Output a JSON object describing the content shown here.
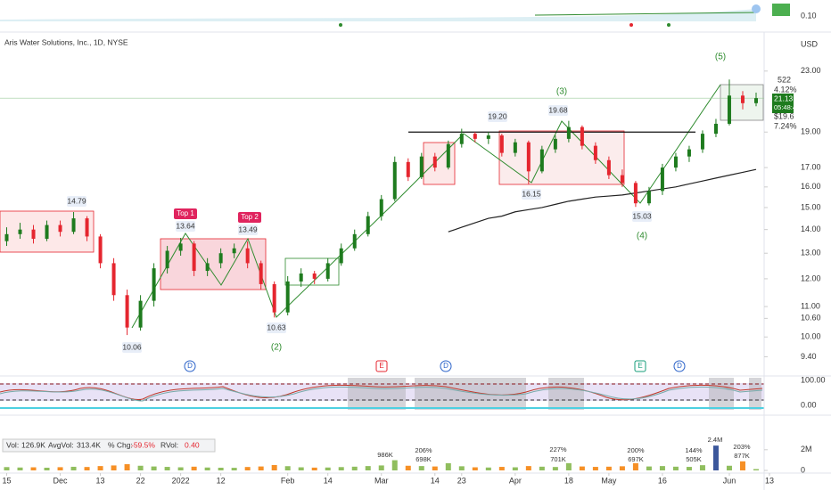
{
  "chart_data": {
    "type": "candlestick",
    "title": "Aris Water Solutions, Inc., 1D, NYSE",
    "log_scale": true,
    "ylim": [
      8.9,
      25.7
    ],
    "yticks": [
      {
        "value": 23,
        "label": "23.00"
      },
      {
        "value": 19,
        "label": "19.00"
      },
      {
        "value": 17,
        "label": "17.00"
      },
      {
        "value": 16,
        "label": "16.00"
      },
      {
        "value": 15,
        "label": "15.00"
      },
      {
        "value": 14,
        "label": "14.00"
      },
      {
        "value": 13,
        "label": "13.00"
      },
      {
        "value": 12,
        "label": "12.00"
      },
      {
        "value": 11,
        "label": "11.00"
      },
      {
        "value": 10.6,
        "label": "10.60"
      },
      {
        "value": 10,
        "label": "10.00"
      },
      {
        "value": 9.4,
        "label": "9.40"
      }
    ],
    "xlim": [
      -0.5,
      56.6
    ],
    "xticks": [
      {
        "value": 0,
        "label": "15"
      },
      {
        "value": 4,
        "label": "Dec"
      },
      {
        "value": 7,
        "label": "13"
      },
      {
        "value": 10,
        "label": "22"
      },
      {
        "value": 13,
        "label": "2022"
      },
      {
        "value": 16,
        "label": "12"
      },
      {
        "value": 21,
        "label": "Feb"
      },
      {
        "value": 24,
        "label": "14"
      },
      {
        "value": 28,
        "label": "Mar"
      },
      {
        "value": 32,
        "label": "14"
      },
      {
        "value": 34,
        "label": "23"
      },
      {
        "value": 38,
        "label": "Apr"
      },
      {
        "value": 42,
        "label": "18"
      },
      {
        "value": 45,
        "label": "May"
      },
      {
        "value": 49,
        "label": "16"
      },
      {
        "value": 54,
        "label": "Jun"
      },
      {
        "value": 57,
        "label": "13"
      }
    ],
    "up_color": "#1e7b1e",
    "down_color": "#e5262f",
    "candles": [
      [
        13.5,
        14.1,
        13.3,
        13.8
      ],
      [
        13.8,
        14.3,
        13.6,
        14.0
      ],
      [
        14.0,
        14.2,
        13.4,
        13.6
      ],
      [
        13.6,
        14.4,
        13.5,
        14.2
      ],
      [
        14.2,
        14.4,
        13.7,
        13.9
      ],
      [
        13.9,
        14.79,
        13.8,
        14.5
      ],
      [
        14.5,
        14.6,
        13.5,
        13.7
      ],
      [
        13.7,
        13.8,
        12.4,
        12.6
      ],
      [
        12.6,
        12.8,
        11.2,
        11.4
      ],
      [
        11.4,
        11.6,
        10.06,
        10.3
      ],
      [
        10.3,
        11.4,
        10.2,
        11.2
      ],
      [
        11.2,
        12.6,
        11.0,
        12.4
      ],
      [
        12.4,
        13.3,
        12.2,
        13.1
      ],
      [
        13.1,
        13.64,
        12.9,
        13.4
      ],
      [
        13.4,
        13.5,
        12.1,
        12.3
      ],
      [
        12.3,
        12.8,
        12.1,
        12.6
      ],
      [
        12.6,
        13.2,
        12.4,
        13.0
      ],
      [
        13.0,
        13.4,
        12.8,
        13.2
      ],
      [
        13.2,
        13.49,
        12.4,
        12.6
      ],
      [
        12.6,
        12.7,
        11.6,
        11.8
      ],
      [
        11.8,
        11.9,
        10.63,
        10.8
      ],
      [
        10.8,
        12.1,
        10.7,
        11.9
      ],
      [
        11.9,
        12.4,
        11.7,
        12.2
      ],
      [
        12.2,
        12.3,
        11.8,
        12.0
      ],
      [
        12.0,
        12.8,
        11.9,
        12.6
      ],
      [
        12.6,
        13.4,
        12.5,
        13.2
      ],
      [
        13.2,
        14.0,
        13.1,
        13.8
      ],
      [
        13.8,
        14.8,
        13.7,
        14.6
      ],
      [
        14.6,
        15.6,
        14.4,
        15.4
      ],
      [
        15.4,
        17.6,
        15.3,
        17.3
      ],
      [
        17.3,
        17.5,
        16.3,
        16.5
      ],
      [
        16.5,
        17.8,
        16.4,
        17.6
      ],
      [
        17.6,
        17.8,
        16.8,
        17.0
      ],
      [
        17.0,
        18.5,
        16.9,
        18.3
      ],
      [
        18.3,
        19.2,
        18.1,
        18.9
      ],
      [
        18.9,
        19.0,
        18.4,
        18.6
      ],
      [
        18.6,
        19.0,
        18.3,
        18.8
      ],
      [
        18.8,
        18.9,
        17.6,
        17.8
      ],
      [
        17.8,
        18.6,
        17.6,
        18.4
      ],
      [
        18.4,
        18.5,
        16.15,
        16.8
      ],
      [
        16.8,
        18.2,
        16.7,
        18.0
      ],
      [
        18.0,
        18.8,
        17.8,
        18.6
      ],
      [
        18.6,
        19.68,
        18.4,
        19.3
      ],
      [
        19.3,
        19.4,
        18.0,
        18.2
      ],
      [
        18.2,
        18.4,
        17.2,
        17.4
      ],
      [
        17.4,
        17.6,
        16.4,
        16.6
      ],
      [
        16.6,
        16.9,
        16.0,
        16.2
      ],
      [
        16.2,
        16.3,
        15.03,
        15.2
      ],
      [
        15.2,
        16.0,
        15.1,
        15.8
      ],
      [
        15.8,
        17.2,
        15.6,
        17.0
      ],
      [
        17.0,
        17.8,
        16.8,
        17.6
      ],
      [
        17.6,
        18.2,
        17.3,
        18.0
      ],
      [
        18.0,
        19.1,
        17.8,
        18.9
      ],
      [
        18.9,
        19.8,
        18.7,
        19.5
      ],
      [
        19.5,
        22.4,
        19.4,
        21.3
      ],
      [
        21.3,
        21.6,
        20.4,
        20.8
      ],
      [
        20.8,
        21.5,
        20.6,
        21.13
      ]
    ],
    "moving_average": {
      "color": "#222222",
      "values": [
        null,
        null,
        null,
        null,
        null,
        null,
        null,
        null,
        null,
        null,
        null,
        null,
        null,
        null,
        null,
        null,
        null,
        null,
        null,
        null,
        null,
        null,
        null,
        null,
        null,
        null,
        null,
        null,
        null,
        null,
        null,
        null,
        null,
        13.9,
        14.1,
        14.3,
        14.5,
        14.6,
        14.8,
        14.9,
        15.0,
        15.15,
        15.3,
        15.4,
        15.5,
        15.55,
        15.6,
        15.7,
        15.8,
        15.9,
        16.0,
        16.15,
        16.3,
        16.45,
        16.6,
        16.75,
        16.9
      ]
    },
    "resistance_level": 19.0,
    "price_labels": [
      "14.79",
      "13.64",
      "13.49",
      "10.06",
      "10.63",
      "19.20",
      "19.68",
      "16.15",
      "15.03"
    ],
    "wave_labels": [
      "(2)",
      "(3)",
      "(4)",
      "(5)"
    ],
    "pattern_labels": [
      "Top 1",
      "Top 2"
    ],
    "event_labels": [
      "D",
      "E",
      "D",
      "E",
      "D"
    ],
    "right_labels": {
      "currency": "USD",
      "target": "522",
      "target_pct": "4.12%",
      "stop": "$19.6",
      "stop_pct": "7.24%",
      "last": "21.13",
      "countdown": "05:48:41",
      "top_pane_tick": "0.10"
    },
    "osc_ticks": [
      "100.00",
      "0.00"
    ],
    "volume": [
      320000,
      280000,
      300000,
      260000,
      310000,
      350000,
      330000,
      420000,
      480000,
      600000,
      450000,
      380000,
      340000,
      300000,
      360000,
      280000,
      260000,
      250000,
      330000,
      380000,
      520000,
      410000,
      300000,
      270000,
      280000,
      320000,
      360000,
      420000,
      480000,
      986000,
      450000,
      420000,
      380000,
      698000,
      400000,
      300000,
      280000,
      340000,
      300000,
      420000,
      360000,
      330000,
      701000,
      380000,
      340000,
      360000,
      400000,
      697000,
      380000,
      420000,
      360000,
      340000,
      505000,
      2400000,
      450000,
      877000,
      126900
    ],
    "vlim": [
      0,
      5000000
    ],
    "vticks": [
      0,
      {
        "value": 2000000,
        "label": "2M"
      }
    ],
    "volume_labels": [
      "986K",
      "206%",
      "698K",
      "227%",
      "701K",
      "200%",
      "697K",
      "144%",
      "505K",
      "2.4M",
      "203%",
      "877K"
    ],
    "info": [
      "Vol:",
      "126.9K",
      "AvgVol:",
      "313.4K",
      "% Chg:",
      "-59.5%",
      "RVol:",
      "0.40"
    ]
  }
}
